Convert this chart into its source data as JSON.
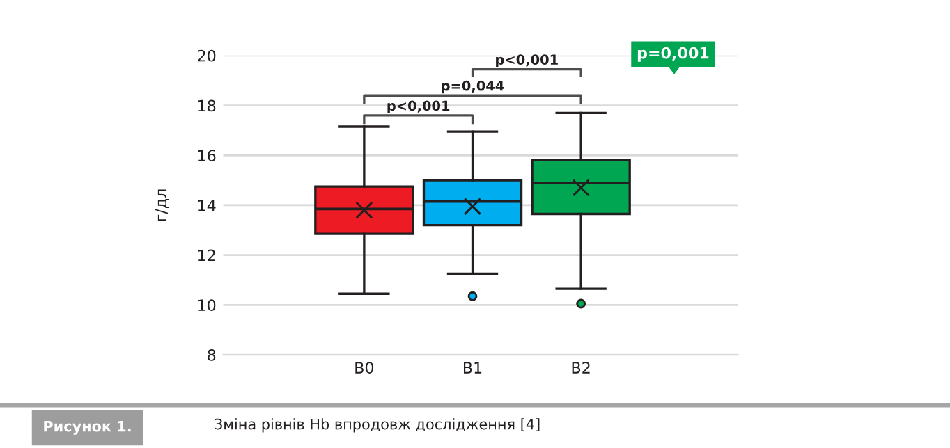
{
  "chart_data": {
    "type": "box",
    "title": "Зміна рівнів Hb впродовж дослідження [4]",
    "ylabel": "г/дл",
    "categories": [
      "B0",
      "B1",
      "B2"
    ],
    "colors": [
      "#ed1c24",
      "#00aeef",
      "#00a651"
    ],
    "boxes": [
      {
        "low": 10.45,
        "q1": 12.85,
        "median": 13.85,
        "q3": 14.75,
        "high": 17.15,
        "mean": 13.8
      },
      {
        "low": 11.25,
        "q1": 13.2,
        "median": 14.15,
        "q3": 15.0,
        "high": 16.95,
        "mean": 13.95,
        "outliers": [
          10.35
        ]
      },
      {
        "low": 10.65,
        "q1": 13.65,
        "median": 14.9,
        "q3": 15.8,
        "high": 17.7,
        "mean": 14.7,
        "outliers": [
          10.05
        ]
      }
    ],
    "ylim": [
      8,
      20
    ],
    "yticks": [
      8,
      10,
      12,
      14,
      16,
      18,
      20
    ],
    "grid": "y",
    "annotations": [
      "p<0,001",
      "p=0,044",
      "p<0,001",
      "p=0,001",
      "Рисунок 1."
    ]
  }
}
